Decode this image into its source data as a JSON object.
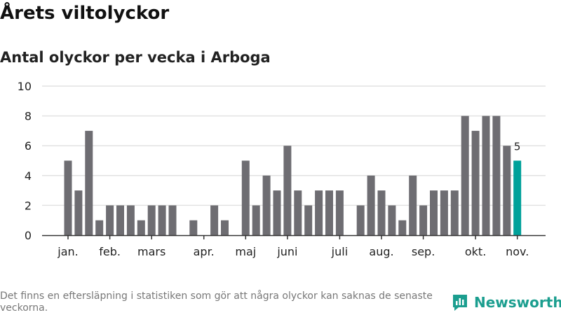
{
  "title": "Årets viltolyckor",
  "subtitle": "Antal olyckor per vecka i Arboga",
  "note": "Det finns en eftersläpning i statistiken som gör att några olyckor kan saknas de senaste veckorna.",
  "logo": {
    "text": "Newsworthy",
    "color": "#1b9e8f"
  },
  "chart_data": {
    "type": "bar",
    "title": "Antal olyckor per vecka i Arboga",
    "xlabel": "",
    "ylabel": "",
    "ylim": [
      0,
      10
    ],
    "yticks": [
      0,
      2,
      4,
      6,
      8,
      10
    ],
    "grid": true,
    "bar_color": "#6e6d72",
    "highlight_color": "#00a19a",
    "values": [
      5,
      3,
      7,
      1,
      2,
      2,
      2,
      1,
      2,
      2,
      2,
      0,
      1,
      0,
      2,
      1,
      0,
      5,
      2,
      4,
      3,
      6,
      3,
      2,
      3,
      3,
      3,
      0,
      2,
      4,
      3,
      2,
      1,
      4,
      2,
      3,
      3,
      3,
      8,
      7,
      8,
      8,
      6,
      5
    ],
    "highlight_last": true,
    "last_label": "5",
    "month_ticks": [
      {
        "label": "jan.",
        "week_index": 0
      },
      {
        "label": "feb.",
        "week_index": 4
      },
      {
        "label": "mars",
        "week_index": 8
      },
      {
        "label": "apr.",
        "week_index": 13
      },
      {
        "label": "maj",
        "week_index": 17
      },
      {
        "label": "juni",
        "week_index": 21
      },
      {
        "label": "juli",
        "week_index": 26
      },
      {
        "label": "aug.",
        "week_index": 30
      },
      {
        "label": "sep.",
        "week_index": 34
      },
      {
        "label": "okt.",
        "week_index": 39
      },
      {
        "label": "nov.",
        "week_index": 43
      }
    ]
  }
}
